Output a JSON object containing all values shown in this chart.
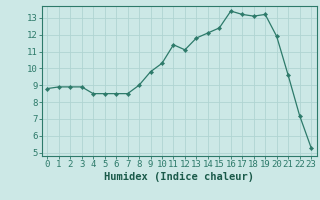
{
  "x": [
    0,
    1,
    2,
    3,
    4,
    5,
    6,
    7,
    8,
    9,
    10,
    11,
    12,
    13,
    14,
    15,
    16,
    17,
    18,
    19,
    20,
    21,
    22,
    23
  ],
  "y": [
    8.8,
    8.9,
    8.9,
    8.9,
    8.5,
    8.5,
    8.5,
    8.5,
    9.0,
    9.8,
    10.3,
    11.4,
    11.1,
    11.8,
    12.1,
    12.4,
    13.4,
    13.2,
    13.1,
    13.2,
    11.9,
    9.6,
    7.2,
    5.3
  ],
  "line_color": "#2d7a6a",
  "marker": "D",
  "marker_size": 2.2,
  "bg_color": "#cce8e6",
  "grid_color": "#b0d4d2",
  "xlabel": "Humidex (Indice chaleur)",
  "ylim": [
    4.8,
    13.7
  ],
  "xlim": [
    -0.5,
    23.5
  ],
  "yticks": [
    5,
    6,
    7,
    8,
    9,
    10,
    11,
    12,
    13
  ],
  "xticks": [
    0,
    1,
    2,
    3,
    4,
    5,
    6,
    7,
    8,
    9,
    10,
    11,
    12,
    13,
    14,
    15,
    16,
    17,
    18,
    19,
    20,
    21,
    22,
    23
  ],
  "tick_color": "#2d7a6a",
  "axis_color": "#2d7a6a",
  "font_color": "#1a5a4a",
  "xlabel_fontsize": 7.5,
  "tick_fontsize": 6.5
}
